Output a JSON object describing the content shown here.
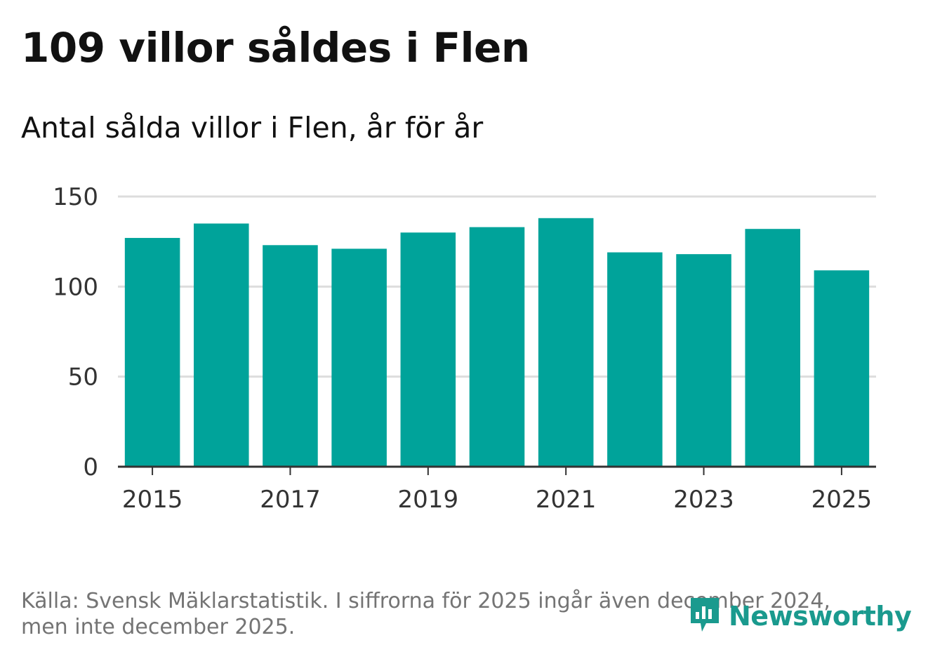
{
  "title": "109 villor såldes i Flen",
  "subtitle": "Antal sålda villor i Flen, år för år",
  "source": "Källa: Svensk Mäklarstatistik. I siffrorna för 2025 ingår även december 2024, men inte december 2025.",
  "logo": {
    "text": "Newsworthy",
    "icon": "bar-chart-speech-bubble-icon"
  },
  "colors": {
    "bar": "#00a39a",
    "grid": "#dddddd",
    "axis": "#333333",
    "logo": "#1a9a8e"
  },
  "chart_data": {
    "type": "bar",
    "title": "Antal sålda villor i Flen, år för år",
    "xlabel": "",
    "ylabel": "",
    "categories": [
      "2015",
      "2016",
      "2017",
      "2018",
      "2019",
      "2020",
      "2021",
      "2022",
      "2023",
      "2024",
      "2025"
    ],
    "values": [
      127,
      135,
      123,
      121,
      130,
      133,
      138,
      119,
      118,
      132,
      109
    ],
    "ylim": [
      0,
      150
    ],
    "yticks": [
      0,
      50,
      100,
      150
    ],
    "xticks": [
      "2015",
      "2017",
      "2019",
      "2021",
      "2023",
      "2025"
    ],
    "grid": true,
    "legend": "none"
  }
}
